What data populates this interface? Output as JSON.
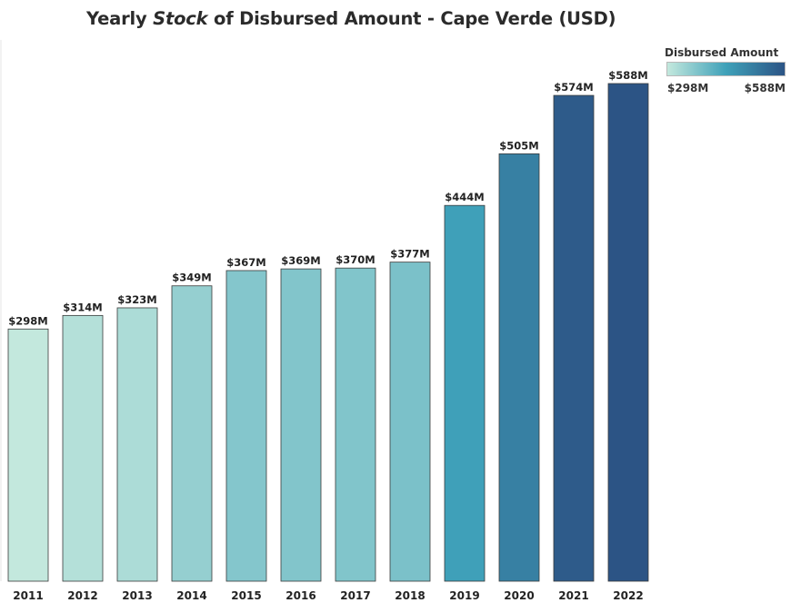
{
  "chart_data": {
    "type": "bar",
    "title_parts": [
      "Yearly ",
      "Stock",
      "  of Disbursed Amount - Cape Verde (USD)"
    ],
    "categories": [
      "2011",
      "2012",
      "2013",
      "2014",
      "2015",
      "2016",
      "2017",
      "2018",
      "2019",
      "2020",
      "2021",
      "2022"
    ],
    "values": [
      298,
      314,
      323,
      349,
      367,
      369,
      370,
      377,
      444,
      505,
      574,
      588
    ],
    "data_labels": [
      "$298M",
      "$314M",
      "$323M",
      "$349M",
      "$367M",
      "$369M",
      "$370M",
      "$377M",
      "$444M",
      "$505M",
      "$574M",
      "$588M"
    ],
    "ylim": [
      0,
      588
    ],
    "grid": false,
    "legend": {
      "title": "Disbursed Amount",
      "min_label": "$298M",
      "max_label": "$588M",
      "placement": "top-right",
      "color_start": "#c3e8dd",
      "color_mid": "#3fa1b9",
      "color_end": "#2c5485"
    }
  }
}
